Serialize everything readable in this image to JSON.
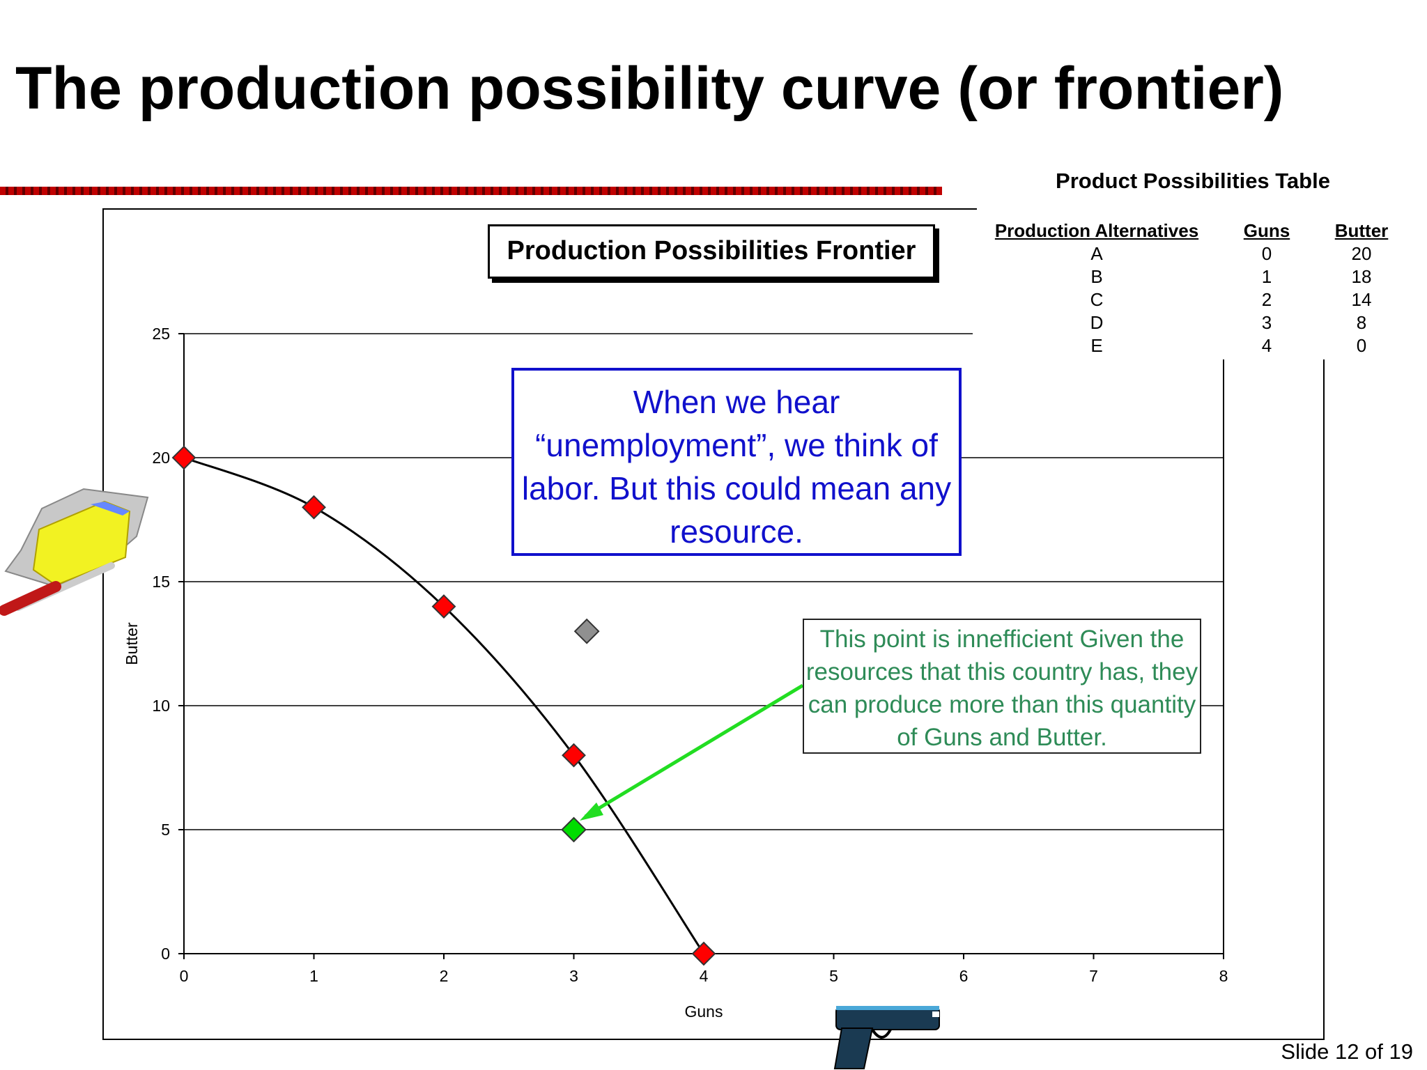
{
  "slide": {
    "title": "The production possibility curve (or frontier)",
    "number": "Slide 12 of 19"
  },
  "chart_data": {
    "type": "scatter",
    "title": "Production Possibilities Frontier",
    "xlabel": "Guns",
    "ylabel": "Butter",
    "xlim": [
      0,
      8
    ],
    "ylim": [
      0,
      25
    ],
    "xticks": [
      0,
      1,
      2,
      3,
      4,
      5,
      6,
      7,
      8
    ],
    "yticks": [
      0,
      5,
      10,
      15,
      20,
      25
    ],
    "grid": "horizontal",
    "series": [
      {
        "points": [
          [
            0,
            20
          ],
          [
            1,
            18
          ],
          [
            2,
            14
          ],
          [
            3,
            8
          ],
          [
            4,
            0
          ]
        ],
        "color": "#ff0000",
        "marker": "diamond",
        "connected": "smooth"
      }
    ],
    "extra_points": [
      {
        "x": 3.1,
        "y": 13,
        "color": "#909090"
      },
      {
        "x": 3,
        "y": 5,
        "color": "#00dd00"
      }
    ],
    "annotations": [
      "When we hear “unemployment”, we think of labor.  But this could mean any resource.",
      "This point is innefficient  Given the resources that this country has, they can produce more than this quantity of Guns and Butter."
    ]
  },
  "table": {
    "title": "Product Possibilities Table",
    "headers": [
      "Production Alternatives",
      "Guns",
      "Butter"
    ],
    "rows": [
      [
        "A",
        "0",
        "20"
      ],
      [
        "B",
        "1",
        "18"
      ],
      [
        "C",
        "2",
        "14"
      ],
      [
        "D",
        "3",
        "8"
      ],
      [
        "E",
        "4",
        "0"
      ]
    ]
  },
  "colors": {
    "frontier_marker": "#ff0000",
    "inefficient_marker": "#00dd00",
    "other_marker": "#909090",
    "blue_callout": "#1010cc",
    "green_callout": "#2e8b57",
    "arrow": "#22dd22",
    "title_rule": "#c00000"
  },
  "icons": {
    "butter": "butter-icon",
    "gun": "pistol-icon"
  }
}
